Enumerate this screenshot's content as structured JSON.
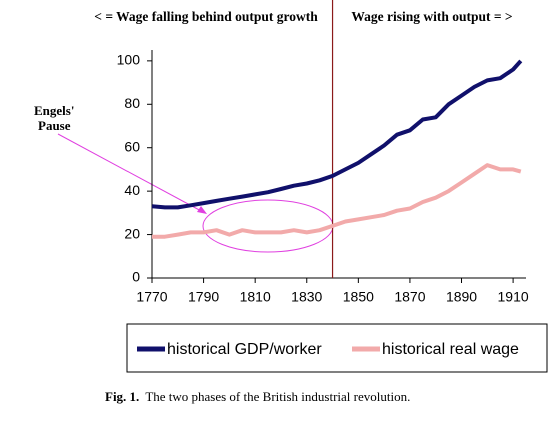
{
  "chart_data": {
    "type": "line",
    "top_left_text": "< = Wage falling behind output growth",
    "top_right_text": "Wage rising with output = >",
    "annotation": [
      "Engels'",
      "Pause"
    ],
    "caption_label": "Fig. 1.",
    "caption": "The two phases of the British industrial revolution.",
    "divider_x": 1840,
    "x": [
      1770,
      1775,
      1780,
      1785,
      1790,
      1795,
      1800,
      1805,
      1810,
      1815,
      1820,
      1825,
      1830,
      1835,
      1840,
      1845,
      1850,
      1855,
      1860,
      1865,
      1870,
      1875,
      1880,
      1885,
      1890,
      1895,
      1900,
      1905,
      1910,
      1913
    ],
    "series": [
      {
        "name": "historical GDP/worker",
        "color": "#10106b",
        "values": [
          33,
          32.5,
          32.5,
          33.5,
          34.5,
          35.5,
          36.5,
          37.5,
          38.5,
          39.5,
          41,
          42.5,
          43.5,
          45,
          47,
          50,
          53,
          57,
          61,
          66,
          68,
          73,
          74,
          80,
          84,
          88,
          91,
          92,
          96,
          100
        ]
      },
      {
        "name": "historical real wage",
        "color": "#f2aaaa",
        "values": [
          19,
          19,
          20,
          21,
          21,
          22,
          20,
          22,
          21,
          21,
          21,
          22,
          21,
          22,
          24,
          26,
          27,
          28,
          29,
          31,
          32,
          35,
          37,
          40,
          44,
          48,
          52,
          50,
          50,
          49
        ]
      }
    ],
    "xlim": [
      1770,
      1915
    ],
    "xticks": [
      1770,
      1790,
      1810,
      1830,
      1850,
      1870,
      1890,
      1910
    ],
    "ylim": [
      0,
      105
    ],
    "yticks": [
      0,
      20,
      40,
      60,
      80,
      100
    ],
    "legend": "bottom"
  }
}
